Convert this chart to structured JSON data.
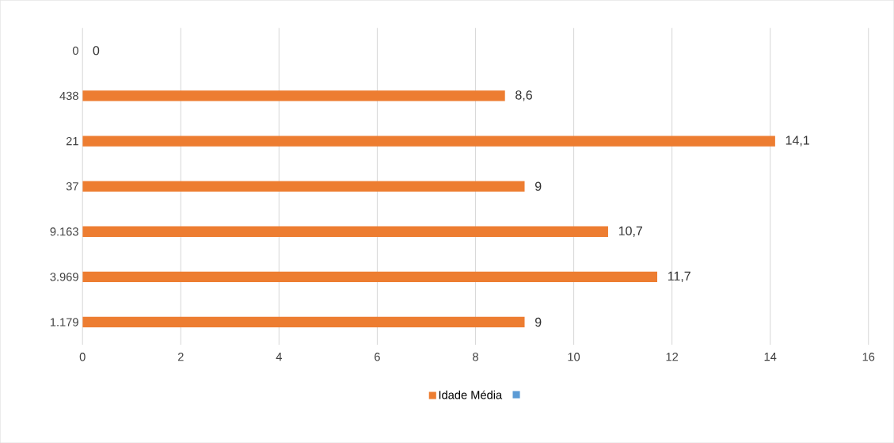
{
  "chart_data": {
    "type": "bar",
    "orientation": "horizontal",
    "categories": [
      "0",
      "438",
      "21",
      "37",
      "9.163",
      "3.969",
      "1.179"
    ],
    "series": [
      {
        "name": "Idade Média",
        "color": "#ed7d31",
        "values": [
          0,
          8.6,
          14.1,
          9,
          10.7,
          11.7,
          9
        ],
        "value_labels": [
          "0",
          "8,6",
          "14,1",
          "9",
          "10,7",
          "11,7",
          "9"
        ]
      },
      {
        "color": "#5b9bd5",
        "values": [
          null,
          null,
          null,
          null,
          null,
          null,
          null
        ]
      }
    ],
    "xlim": [
      0,
      16
    ],
    "xticks": [
      0,
      2,
      4,
      6,
      8,
      10,
      12,
      14,
      16
    ],
    "grid": "x",
    "legend": "bottom"
  }
}
